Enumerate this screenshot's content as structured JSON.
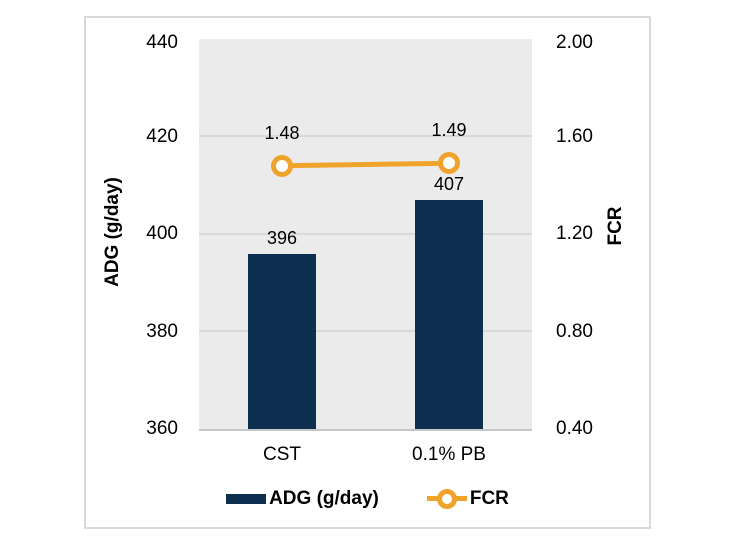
{
  "style": {
    "bar_color": "#0E3050",
    "line_color": "#EFA32A",
    "plot_bg": "#EBEBEB",
    "gridline_color": "#D9D9D9",
    "axis_line_color": "#C6C6C6",
    "frame_border_color": "#D9D9D9",
    "text_color": "#000000"
  },
  "chart_data": {
    "type": "bar",
    "subtype": "combo bar + line, dual axis",
    "categories": [
      "CST",
      "0.1% PB"
    ],
    "series": [
      {
        "name": "ADG (g/day)",
        "chart_type": "bar",
        "axis": "left",
        "color": "#0E3050",
        "values": [
          396,
          407
        ],
        "data_labels": [
          "396",
          "407"
        ]
      },
      {
        "name": "FCR",
        "chart_type": "line",
        "axis": "right",
        "color": "#EFA32A",
        "values": [
          1.48,
          1.49
        ],
        "data_labels": [
          "1.48",
          "1.49"
        ]
      }
    ],
    "left_axis": {
      "title": "ADG (g/day)",
      "min": 360,
      "max": 440,
      "step": 20,
      "ticks": [
        "440",
        "420",
        "400",
        "380",
        "360"
      ]
    },
    "right_axis": {
      "title": "FCR",
      "min": 0.4,
      "max": 2.0,
      "step": 0.4,
      "ticks": [
        "2.00",
        "1.60",
        "1.20",
        "0.80",
        "0.40"
      ]
    },
    "grid": true,
    "legend_position": "bottom",
    "legend": [
      "ADG (g/day)",
      "FCR"
    ]
  }
}
